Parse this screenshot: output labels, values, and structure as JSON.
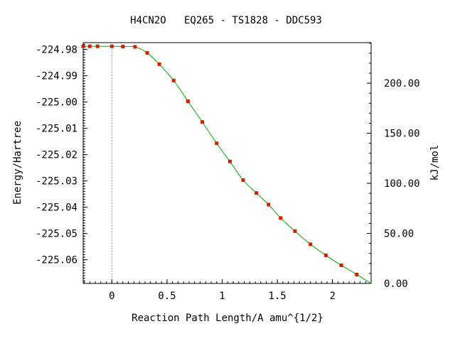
{
  "chart_data": {
    "type": "line",
    "title": "H4CN2O   EQ265 - TS1828 - DDC593",
    "xlabel": "Reaction Path Length/A amu^{1/2}",
    "ylabel": "Energy/Hartree",
    "y2label": "kJ/mol",
    "xlim": [
      -0.26,
      2.35
    ],
    "ylim": [
      -225.069,
      -224.9774
    ],
    "y2lim": [
      0,
      240.5
    ],
    "x_ticks": [
      {
        "value": 0,
        "label": "0"
      },
      {
        "value": 0.5,
        "label": "0.5"
      },
      {
        "value": 1,
        "label": "1"
      },
      {
        "value": 1.5,
        "label": "1.5"
      },
      {
        "value": 2,
        "label": "2"
      }
    ],
    "y_ticks": [
      {
        "value": -224.98,
        "label": "-224.98"
      },
      {
        "value": -224.99,
        "label": "-224.99"
      },
      {
        "value": -225.0,
        "label": "-225.00"
      },
      {
        "value": -225.01,
        "label": "-225.01"
      },
      {
        "value": -225.02,
        "label": "-225.02"
      },
      {
        "value": -225.03,
        "label": "-225.03"
      },
      {
        "value": -225.04,
        "label": "-225.04"
      },
      {
        "value": -225.05,
        "label": "-225.05"
      },
      {
        "value": -225.06,
        "label": "-225.06"
      }
    ],
    "y2_ticks": [
      {
        "value": 0,
        "label": "0.00"
      },
      {
        "value": 50,
        "label": "50.00"
      },
      {
        "value": 100,
        "label": "100.00"
      },
      {
        "value": 150,
        "label": "150.00"
      },
      {
        "value": 200,
        "label": "200.00"
      }
    ],
    "reference_line_x": 0,
    "grid": false,
    "colors": {
      "line": "#00aa00",
      "marker": "#cc2200",
      "refline": "#999999"
    },
    "series": [
      {
        "x": [
          -0.26,
          -0.2,
          -0.13,
          0.0,
          0.1,
          0.21,
          0.32,
          0.43,
          0.56,
          0.69,
          0.82,
          0.95,
          1.07,
          1.19,
          1.31,
          1.42,
          1.53,
          1.66,
          1.8,
          1.94,
          2.08,
          2.22
        ],
        "y": [
          -224.9788,
          -224.9788,
          -224.9788,
          -224.9788,
          -224.9789,
          -224.979,
          -224.9813,
          -224.9856,
          -224.9918,
          -224.9997,
          -225.0076,
          -225.0157,
          -225.0226,
          -225.0297,
          -225.0346,
          -225.039,
          -225.0441,
          -225.0491,
          -225.0541,
          -225.0583,
          -225.0621,
          -225.0656
        ]
      }
    ]
  }
}
